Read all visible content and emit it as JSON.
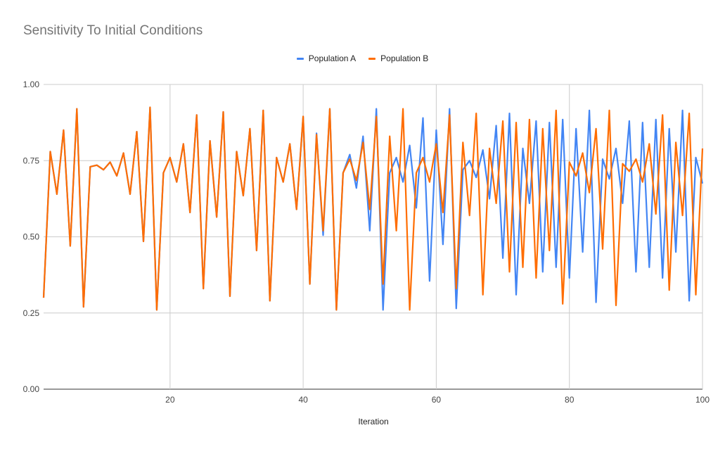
{
  "chart_data": {
    "type": "line",
    "title": "Sensitivity To Initial Conditions",
    "xlabel": "Iteration",
    "ylabel": "",
    "xlim": [
      1,
      100
    ],
    "ylim": [
      0,
      1
    ],
    "x_ticks": [
      "20",
      "40",
      "60",
      "80",
      "100"
    ],
    "y_ticks": [
      "0.00",
      "0.25",
      "0.50",
      "0.75",
      "1.00"
    ],
    "grid": true,
    "legend_position": "top",
    "series": [
      {
        "name": "Population A",
        "color": "#4285F4",
        "values": [
          0.3,
          0.78,
          0.64,
          0.85,
          0.47,
          0.92,
          0.27,
          0.73,
          0.735,
          0.72,
          0.745,
          0.7,
          0.775,
          0.64,
          0.845,
          0.485,
          0.925,
          0.26,
          0.71,
          0.76,
          0.68,
          0.805,
          0.58,
          0.9,
          0.33,
          0.815,
          0.565,
          0.91,
          0.305,
          0.78,
          0.635,
          0.855,
          0.455,
          0.915,
          0.29,
          0.76,
          0.68,
          0.805,
          0.59,
          0.895,
          0.345,
          0.84,
          0.505,
          0.92,
          0.26,
          0.71,
          0.77,
          0.66,
          0.83,
          0.52,
          0.92,
          0.26,
          0.71,
          0.76,
          0.68,
          0.8,
          0.595,
          0.89,
          0.355,
          0.85,
          0.475,
          0.92,
          0.265,
          0.72,
          0.75,
          0.695,
          0.785,
          0.625,
          0.865,
          0.43,
          0.905,
          0.31,
          0.79,
          0.61,
          0.88,
          0.385,
          0.875,
          0.4,
          0.885,
          0.365,
          0.855,
          0.45,
          0.915,
          0.285,
          0.755,
          0.69,
          0.79,
          0.61,
          0.88,
          0.385,
          0.875,
          0.4,
          0.885,
          0.365,
          0.855,
          0.45,
          0.915,
          0.29,
          0.76,
          0.675
        ]
      },
      {
        "name": "Population B",
        "color": "#FF6D01",
        "values": [
          0.3,
          0.78,
          0.64,
          0.85,
          0.47,
          0.92,
          0.27,
          0.73,
          0.735,
          0.72,
          0.745,
          0.7,
          0.775,
          0.64,
          0.845,
          0.485,
          0.925,
          0.26,
          0.71,
          0.76,
          0.68,
          0.805,
          0.58,
          0.9,
          0.33,
          0.815,
          0.565,
          0.91,
          0.305,
          0.78,
          0.635,
          0.855,
          0.455,
          0.915,
          0.29,
          0.76,
          0.68,
          0.805,
          0.59,
          0.895,
          0.345,
          0.835,
          0.52,
          0.92,
          0.26,
          0.71,
          0.755,
          0.685,
          0.81,
          0.59,
          0.895,
          0.345,
          0.83,
          0.52,
          0.92,
          0.26,
          0.71,
          0.76,
          0.68,
          0.805,
          0.58,
          0.9,
          0.33,
          0.81,
          0.57,
          0.905,
          0.31,
          0.79,
          0.61,
          0.88,
          0.385,
          0.875,
          0.4,
          0.885,
          0.365,
          0.855,
          0.455,
          0.915,
          0.28,
          0.745,
          0.7,
          0.775,
          0.645,
          0.855,
          0.46,
          0.915,
          0.275,
          0.74,
          0.715,
          0.755,
          0.68,
          0.805,
          0.575,
          0.9,
          0.325,
          0.81,
          0.57,
          0.905,
          0.31,
          0.79
        ]
      }
    ]
  }
}
